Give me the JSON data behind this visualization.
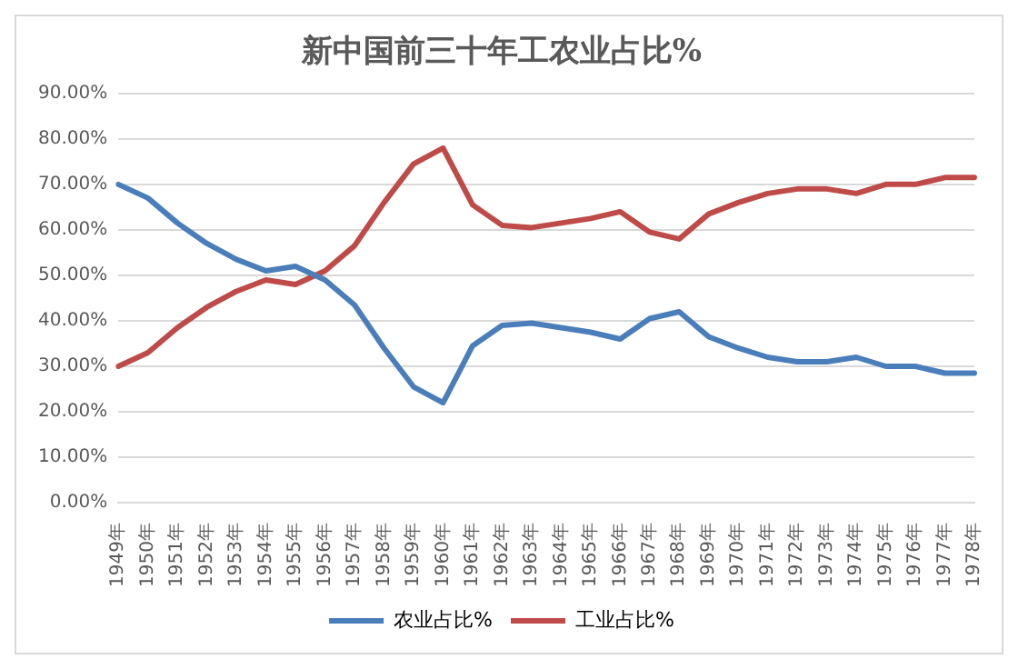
{
  "chart_data": {
    "type": "line",
    "title": "新中国前三十年工农业占比%",
    "categories": [
      "1949年",
      "1950年",
      "1951年",
      "1952年",
      "1953年",
      "1954年",
      "1955年",
      "1956年",
      "1957年",
      "1958年",
      "1959年",
      "1960年",
      "1961年",
      "1962年",
      "1963年",
      "1964年",
      "1965年",
      "1966年",
      "1967年",
      "1968年",
      "1969年",
      "1970年",
      "1971年",
      "1972年",
      "1973年",
      "1974年",
      "1975年",
      "1976年",
      "1977年",
      "1978年"
    ],
    "series": [
      {
        "name": "农业占比%",
        "color": "#4a7ebb",
        "values": [
          70,
          67,
          61.5,
          57,
          53.5,
          51,
          52,
          49,
          43.5,
          34,
          25.5,
          22,
          34.5,
          39,
          39.5,
          38.5,
          37.5,
          36,
          40.5,
          42,
          36.5,
          34,
          32,
          31,
          31,
          32,
          30,
          30,
          28.5,
          28.5
        ]
      },
      {
        "name": "工业占比%",
        "color": "#be4b48",
        "values": [
          30,
          33,
          38.5,
          43,
          46.5,
          49,
          48,
          51,
          56.5,
          66,
          74.5,
          78,
          65.5,
          61,
          60.5,
          61.5,
          62.5,
          64,
          59.5,
          58,
          63.5,
          66,
          68,
          69,
          69,
          68,
          70,
          70,
          71.5,
          71.5
        ]
      }
    ],
    "ylim": [
      0,
      90
    ],
    "yticks": [
      {
        "value": 0,
        "label": "0.00%"
      },
      {
        "value": 10,
        "label": "10.00%"
      },
      {
        "value": 20,
        "label": "20.00%"
      },
      {
        "value": 30,
        "label": "30.00%"
      },
      {
        "value": 40,
        "label": "40.00%"
      },
      {
        "value": 50,
        "label": "50.00%"
      },
      {
        "value": 60,
        "label": "60.00%"
      },
      {
        "value": 70,
        "label": "70.00%"
      },
      {
        "value": 80,
        "label": "80.00%"
      },
      {
        "value": 90,
        "label": "90.00%"
      }
    ],
    "grid": "y",
    "legend": "bottom",
    "marker": "none",
    "line_style": "solid"
  }
}
